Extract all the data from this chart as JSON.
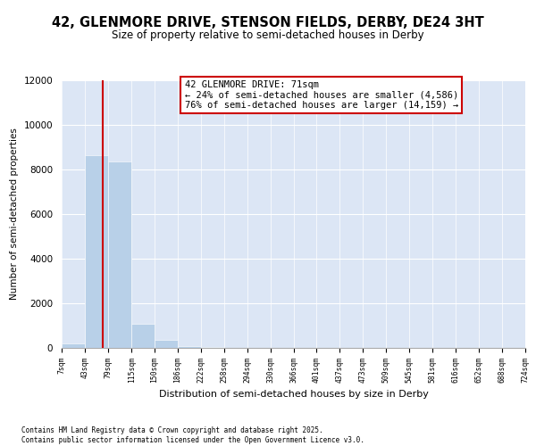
{
  "title_line1": "42, GLENMORE DRIVE, STENSON FIELDS, DERBY, DE24 3HT",
  "title_line2": "Size of property relative to semi-detached houses in Derby",
  "xlabel": "Distribution of semi-detached houses by size in Derby",
  "ylabel": "Number of semi-detached properties",
  "footer_line1": "Contains HM Land Registry data © Crown copyright and database right 2025.",
  "footer_line2": "Contains public sector information licensed under the Open Government Licence v3.0.",
  "annotation_title": "42 GLENMORE DRIVE: 71sqm",
  "annotation_line2": "← 24% of semi-detached houses are smaller (4,586)",
  "annotation_line3": "76% of semi-detached houses are larger (14,159) →",
  "property_size": 71,
  "bar_color": "#b8d0e8",
  "property_line_color": "#cc0000",
  "background_color": "#dce6f5",
  "ylim": [
    0,
    12000
  ],
  "yticks": [
    0,
    2000,
    4000,
    6000,
    8000,
    10000,
    12000
  ],
  "bins": [
    7,
    43,
    79,
    115,
    150,
    186,
    222,
    258,
    294,
    330,
    366,
    401,
    437,
    473,
    509,
    545,
    581,
    616,
    652,
    688,
    724
  ],
  "counts": [
    200,
    8650,
    8350,
    1100,
    350,
    100,
    50,
    10,
    5,
    2,
    1,
    0,
    0,
    0,
    0,
    0,
    0,
    0,
    0,
    0
  ]
}
